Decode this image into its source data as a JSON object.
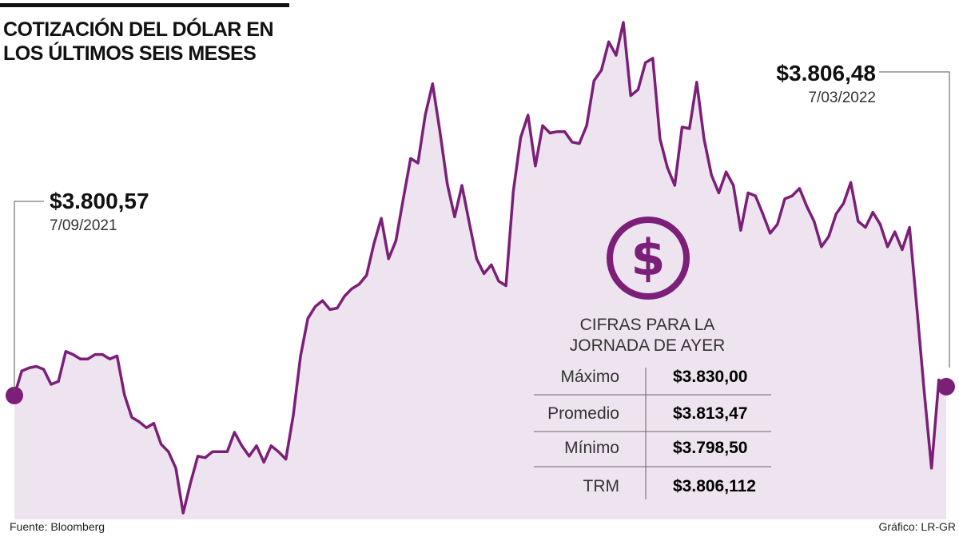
{
  "chart_data": {
    "type": "line",
    "title": "COTIZACIÓN DEL DÓLAR EN LOS ÚLTIMOS SEIS MESES",
    "color": "#7b1f78",
    "fill_color": "#eee4ef",
    "values": [
      3800.57,
      3817,
      3819,
      3820,
      3818,
      3808,
      3810,
      3830,
      3828,
      3825,
      3825,
      3828,
      3828,
      3825,
      3827,
      3801,
      3786,
      3783,
      3779,
      3782,
      3768,
      3763,
      3752,
      3722,
      3742,
      3760,
      3759,
      3763,
      3763,
      3763,
      3776,
      3767,
      3760,
      3767,
      3756,
      3767,
      3763,
      3758,
      3787,
      3827,
      3852,
      3860,
      3864,
      3858,
      3859,
      3867,
      3872,
      3875,
      3881,
      3902,
      3919,
      3892,
      3904,
      3932,
      3959,
      3956,
      3988,
      4009,
      3977,
      3942,
      3920,
      3941,
      3916,
      3892,
      3882,
      3888,
      3877,
      3874,
      3937,
      3973,
      3988,
      3954,
      3981,
      3976,
      3977,
      3977,
      3970,
      3969,
      3981,
      4011,
      4018,
      4037,
      4028,
      4050,
      4001,
      4005,
      4023,
      4026,
      3972,
      3953,
      3941,
      3980,
      3979,
      4010,
      3972,
      3948,
      3936,
      3950,
      3941,
      3911,
      3936,
      3934,
      3922,
      3909,
      3915,
      3932,
      3934,
      3939,
      3927,
      3917,
      3900,
      3907,
      3922,
      3929,
      3943,
      3917,
      3913,
      3923,
      3915,
      3900,
      3910,
      3898,
      3913,
      3859,
      3803,
      3752,
      3811,
      3806.48
    ],
    "start": {
      "value": 3800.57,
      "value_label": "$3.800,57",
      "date": "7/09/2021"
    },
    "end": {
      "value": 3806.48,
      "value_label": "$3.806,48",
      "date": "7/03/2022"
    },
    "panel": {
      "heading": "CIFRAS PARA LA JORNADA DE AYER",
      "rows": [
        {
          "label": "Máximo",
          "value": 3830.0,
          "value_label": "$3.830,00"
        },
        {
          "label": "Promedio",
          "value": 3813.47,
          "value_label": "$3.813,47"
        },
        {
          "label": "Mínimo",
          "value": 3798.5,
          "value_label": "$3.798,50"
        },
        {
          "label": "TRM",
          "value": 3806.112,
          "value_label": "$3.806,112"
        }
      ]
    },
    "source": "Fuente: Bloomberg",
    "credit": "Gráfico: LR-GR"
  }
}
